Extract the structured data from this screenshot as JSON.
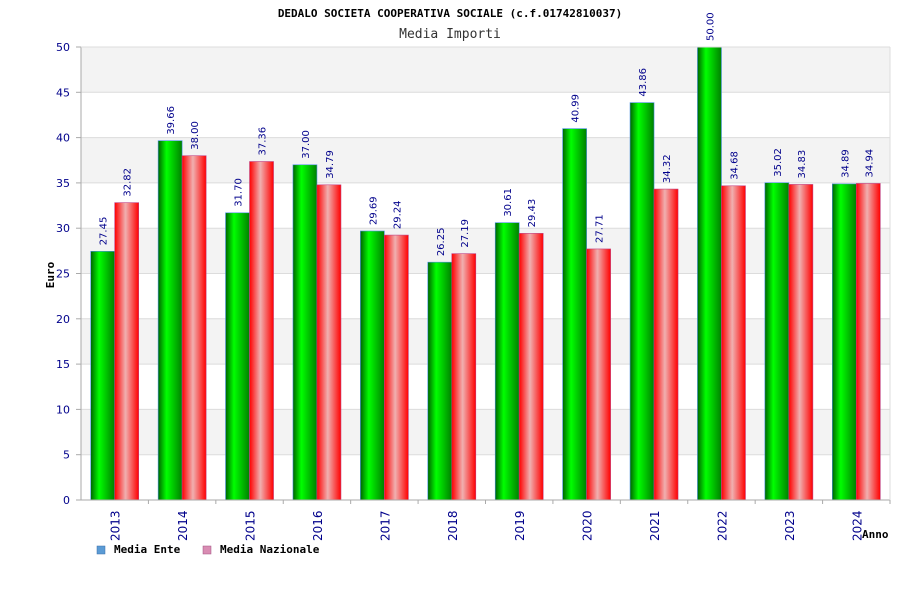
{
  "chart_data": {
    "type": "bar",
    "title": "DEDALO SOCIETA COOPERATIVA SOCIALE (c.f.01742810037)",
    "subtitle": "Media Importi",
    "xlabel": "Anno",
    "ylabel": "Euro",
    "ylim": [
      0,
      50
    ],
    "yticks": [
      "0",
      "5",
      "10",
      "15",
      "20",
      "25",
      "30",
      "35",
      "40",
      "45",
      "50"
    ],
    "categories": [
      "2013",
      "2014",
      "2015",
      "2016",
      "2017",
      "2018",
      "2019",
      "2020",
      "2021",
      "2022",
      "2023",
      "2024"
    ],
    "series": [
      {
        "name": "Media Ente",
        "values": [
          27.45,
          39.66,
          31.7,
          37.0,
          29.69,
          26.25,
          30.61,
          40.99,
          43.86,
          50.0,
          35.02,
          34.89
        ],
        "labels": [
          "27.45",
          "39.66",
          "31.70",
          "37.00",
          "29.69",
          "26.25",
          "30.61",
          "40.99",
          "43.86",
          "50.00",
          "35.02",
          "34.89"
        ],
        "color": "#00a000",
        "legend_color": "#5b9bd5"
      },
      {
        "name": "Media Nazionale",
        "values": [
          32.82,
          38.0,
          37.36,
          34.79,
          29.24,
          27.19,
          29.43,
          27.71,
          34.32,
          34.68,
          34.83,
          34.94
        ],
        "labels": [
          "32.82",
          "38.00",
          "37.36",
          "34.79",
          "29.24",
          "27.19",
          "29.43",
          "27.71",
          "34.32",
          "34.68",
          "34.83",
          "34.94"
        ],
        "color": "#e00000",
        "legend_color": "#d98cb3"
      }
    ],
    "grid": true,
    "legend": "bottom-left"
  }
}
